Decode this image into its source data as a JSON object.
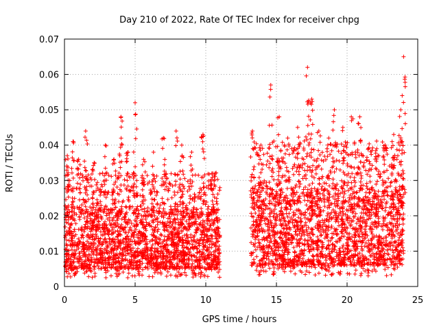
{
  "chart_data": {
    "type": "scatter",
    "title": "Day 210 of 2022, Rate Of TEC Index for receiver chpg",
    "xlabel": "GPS time / hours",
    "ylabel": "ROTI / TECUs",
    "xlim": [
      0,
      25
    ],
    "ylim": [
      0,
      0.07
    ],
    "x_ticks": [
      0,
      5,
      10,
      15,
      20,
      25
    ],
    "y_ticks": [
      0,
      0.01,
      0.02,
      0.03,
      0.04,
      0.05,
      0.06,
      0.07
    ],
    "x_tick_labels": [
      "0",
      "5",
      "10",
      "15",
      "20",
      "25"
    ],
    "y_tick_labels": [
      "0",
      "0.01",
      "0.02",
      "0.03",
      "0.04",
      "0.05",
      "0.06",
      "0.07"
    ],
    "grid": true,
    "legend": "none",
    "marker": "plus",
    "color": "#ff0000",
    "segments": [
      {
        "x_start": 0.0,
        "x_end": 11.0,
        "typical_range": [
          0.005,
          0.022
        ]
      },
      {
        "x_start": 13.2,
        "x_end": 24.0,
        "typical_range": [
          0.006,
          0.028
        ]
      }
    ],
    "peaks": [
      {
        "x": 0.2,
        "y": 0.037
      },
      {
        "x": 0.6,
        "y": 0.041
      },
      {
        "x": 1.0,
        "y": 0.036
      },
      {
        "x": 1.5,
        "y": 0.044
      },
      {
        "x": 2.1,
        "y": 0.035
      },
      {
        "x": 2.9,
        "y": 0.04
      },
      {
        "x": 3.5,
        "y": 0.036
      },
      {
        "x": 4.0,
        "y": 0.048
      },
      {
        "x": 4.5,
        "y": 0.038
      },
      {
        "x": 5.0,
        "y": 0.052
      },
      {
        "x": 5.6,
        "y": 0.036
      },
      {
        "x": 6.3,
        "y": 0.038
      },
      {
        "x": 7.0,
        "y": 0.042
      },
      {
        "x": 7.9,
        "y": 0.044
      },
      {
        "x": 8.3,
        "y": 0.04
      },
      {
        "x": 9.0,
        "y": 0.038
      },
      {
        "x": 9.8,
        "y": 0.043
      },
      {
        "x": 10.5,
        "y": 0.032
      },
      {
        "x": 13.3,
        "y": 0.044
      },
      {
        "x": 13.9,
        "y": 0.04
      },
      {
        "x": 14.6,
        "y": 0.057
      },
      {
        "x": 15.2,
        "y": 0.048
      },
      {
        "x": 15.8,
        "y": 0.042
      },
      {
        "x": 16.5,
        "y": 0.045
      },
      {
        "x": 17.2,
        "y": 0.062
      },
      {
        "x": 17.5,
        "y": 0.053
      },
      {
        "x": 18.0,
        "y": 0.044
      },
      {
        "x": 18.7,
        "y": 0.042
      },
      {
        "x": 19.1,
        "y": 0.05
      },
      {
        "x": 19.7,
        "y": 0.045
      },
      {
        "x": 20.3,
        "y": 0.048
      },
      {
        "x": 20.9,
        "y": 0.048
      },
      {
        "x": 21.5,
        "y": 0.039
      },
      {
        "x": 22.1,
        "y": 0.039
      },
      {
        "x": 22.7,
        "y": 0.04
      },
      {
        "x": 23.3,
        "y": 0.043
      },
      {
        "x": 23.8,
        "y": 0.05
      },
      {
        "x": 23.9,
        "y": 0.054
      },
      {
        "x": 24.0,
        "y": 0.065
      }
    ]
  }
}
